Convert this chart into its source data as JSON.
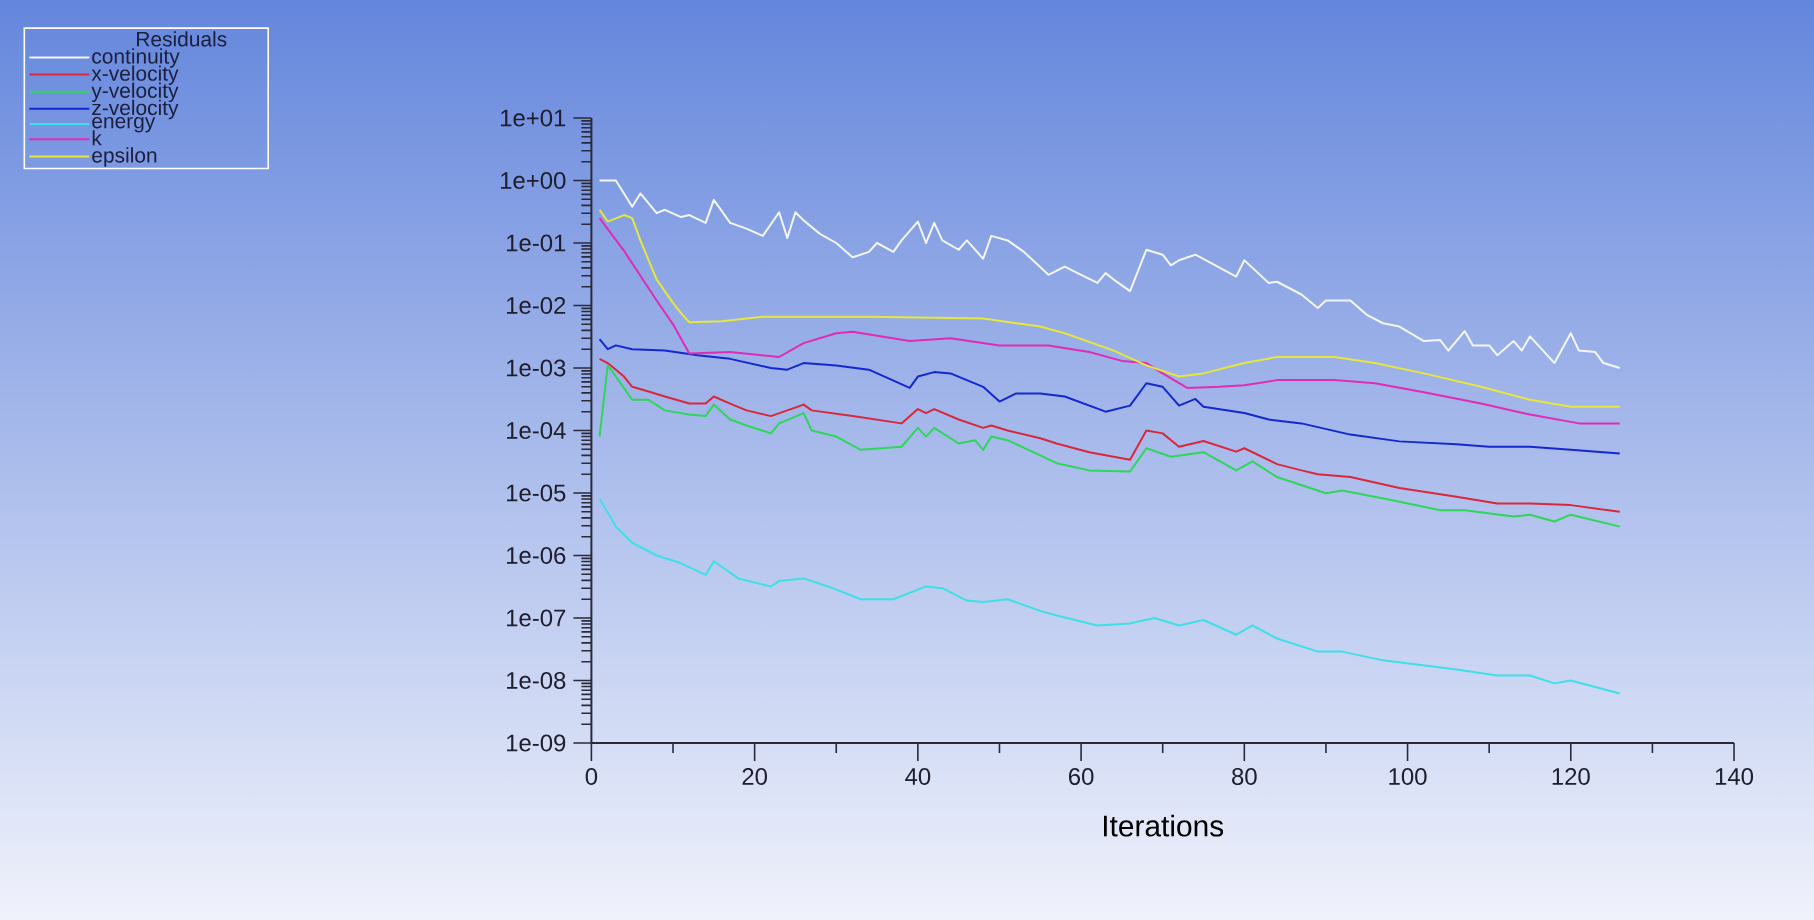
{
  "chart_data": {
    "type": "line",
    "xlabel": "Iterations",
    "legend_title": "Residuals",
    "legend": "top left",
    "log": "y",
    "xlim": [
      0,
      140
    ],
    "xticks": [
      0,
      20,
      40,
      60,
      80,
      100,
      120,
      140
    ],
    "ylim": [
      1e-09,
      10
    ],
    "yticks": [
      {
        "value": 10,
        "label": "1e+01"
      },
      {
        "value": 1,
        "label": "1e+00"
      },
      {
        "value": 0.1,
        "label": "1e-01"
      },
      {
        "value": 0.01,
        "label": "1e-02"
      },
      {
        "value": 0.001,
        "label": "1e-03"
      },
      {
        "value": 0.0001,
        "label": "1e-04"
      },
      {
        "value": 1e-05,
        "label": "1e-05"
      },
      {
        "value": 1e-06,
        "label": "1e-06"
      },
      {
        "value": 1e-07,
        "label": "1e-07"
      },
      {
        "value": 1e-08,
        "label": "1e-08"
      },
      {
        "value": 1e-09,
        "label": "1e-09"
      }
    ],
    "series": [
      {
        "name": "continuity",
        "color": "#f4f6ff",
        "x": [
          1,
          3,
          5,
          6,
          8,
          9,
          11,
          12,
          14,
          15,
          17,
          19,
          21,
          23,
          24,
          25,
          26,
          28,
          30,
          32,
          34,
          35,
          37,
          38,
          40,
          41,
          42,
          43,
          45,
          46,
          48,
          49,
          51,
          53,
          56,
          58,
          60,
          62,
          63,
          64,
          66,
          68,
          70,
          71,
          72,
          74,
          76,
          79,
          80,
          81,
          83,
          84,
          87,
          89,
          90,
          93,
          95,
          97,
          99,
          102,
          104,
          105,
          107,
          108,
          110,
          111,
          113,
          114,
          115,
          118,
          120,
          121,
          123,
          124,
          126
        ],
        "values": [
          1.0,
          1.0,
          0.38,
          0.62,
          0.3,
          0.34,
          0.26,
          0.28,
          0.21,
          0.49,
          0.21,
          0.17,
          0.13,
          0.31,
          0.12,
          0.31,
          0.23,
          0.14,
          0.1,
          0.059,
          0.072,
          0.1,
          0.072,
          0.11,
          0.22,
          0.1,
          0.21,
          0.11,
          0.078,
          0.11,
          0.056,
          0.13,
          0.11,
          0.072,
          0.031,
          0.042,
          0.031,
          0.023,
          0.033,
          0.026,
          0.017,
          0.078,
          0.065,
          0.044,
          0.053,
          0.065,
          0.047,
          0.029,
          0.053,
          0.04,
          0.023,
          0.024,
          0.015,
          0.0091,
          0.012,
          0.012,
          0.0071,
          0.0052,
          0.0046,
          0.0027,
          0.0028,
          0.0019,
          0.0039,
          0.0023,
          0.0023,
          0.0016,
          0.0027,
          0.0019,
          0.0032,
          0.0012,
          0.0036,
          0.0019,
          0.0018,
          0.0012,
          0.001
        ]
      },
      {
        "name": "x-velocity",
        "color": "#d8283c",
        "x": [
          1,
          2,
          4,
          5,
          7,
          9,
          12,
          14,
          15,
          17,
          19,
          22,
          24,
          26,
          27,
          32,
          38,
          40,
          41,
          42,
          45,
          48,
          49,
          51,
          55,
          57,
          61,
          66,
          68,
          70,
          72,
          75,
          79,
          80,
          84,
          87,
          89,
          93,
          99,
          106,
          111,
          115,
          120,
          126
        ],
        "values": [
          0.0014,
          0.0012,
          0.00073,
          0.0005,
          0.00042,
          0.00035,
          0.00027,
          0.00027,
          0.00035,
          0.00027,
          0.00021,
          0.00017,
          0.00021,
          0.00026,
          0.00021,
          0.00017,
          0.00013,
          0.00022,
          0.00019,
          0.00022,
          0.00015,
          0.00011,
          0.00012,
          0.0001,
          7.5e-05,
          6.2e-05,
          4.5e-05,
          3.4e-05,
          0.0001,
          9e-05,
          5.5e-05,
          6.8e-05,
          4.6e-05,
          5.2e-05,
          2.9e-05,
          2.3e-05,
          2e-05,
          1.8e-05,
          1.2e-05,
          8.7e-06,
          6.8e-06,
          6.8e-06,
          6.4e-06,
          5e-06
        ]
      },
      {
        "name": "y-velocity",
        "color": "#2ed65a",
        "x": [
          1,
          2,
          3,
          5,
          7,
          9,
          12,
          14,
          15,
          17,
          19,
          22,
          23,
          26,
          27,
          30,
          33,
          38,
          40,
          41,
          42,
          45,
          47,
          48,
          49,
          51,
          55,
          57,
          61,
          66,
          68,
          71,
          75,
          79,
          81,
          84,
          90,
          92,
          98,
          104,
          107,
          113,
          115,
          118,
          120,
          126
        ],
        "values": [
          8e-05,
          0.0011,
          0.00073,
          0.00031,
          0.00031,
          0.00021,
          0.00018,
          0.00017,
          0.00026,
          0.00015,
          0.00012,
          9e-05,
          0.00013,
          0.00019,
          0.0001,
          8e-05,
          4.9e-05,
          5.5e-05,
          0.00011,
          8e-05,
          0.00011,
          6.2e-05,
          7e-05,
          4.9e-05,
          8e-05,
          7e-05,
          4e-05,
          3e-05,
          2.3e-05,
          2.2e-05,
          5.2e-05,
          3.8e-05,
          4.5e-05,
          2.3e-05,
          3.2e-05,
          1.8e-05,
          9.9e-06,
          1.1e-05,
          7.7e-06,
          5.3e-06,
          5.3e-06,
          4.2e-06,
          4.5e-06,
          3.5e-06,
          4.5e-06,
          2.9e-06
        ]
      },
      {
        "name": "z-velocity",
        "color": "#1428d0",
        "x": [
          1,
          2,
          3,
          5,
          9,
          13,
          17,
          22,
          24,
          26,
          30,
          34,
          39,
          40,
          42,
          44,
          48,
          50,
          52,
          55,
          58,
          63,
          66,
          68,
          70,
          72,
          74,
          75,
          80,
          83,
          87,
          93,
          99,
          106,
          110,
          115,
          120,
          126
        ],
        "values": [
          0.0029,
          0.002,
          0.0023,
          0.002,
          0.0019,
          0.0016,
          0.0014,
          0.001,
          0.00094,
          0.0012,
          0.0011,
          0.00094,
          0.00048,
          0.00073,
          0.00086,
          0.00082,
          0.0005,
          0.00029,
          0.00039,
          0.00039,
          0.00035,
          0.0002,
          0.00025,
          0.00057,
          0.0005,
          0.00025,
          0.00032,
          0.00024,
          0.00019,
          0.00015,
          0.00013,
          8.6e-05,
          6.7e-05,
          6e-05,
          5.5e-05,
          5.5e-05,
          4.9e-05,
          4.3e-05
        ]
      },
      {
        "name": "energy",
        "color": "#3ee0e6",
        "x": [
          1,
          3,
          5,
          8,
          11,
          14,
          15,
          18,
          22,
          23,
          26,
          29,
          33,
          37,
          41,
          43,
          46,
          48,
          51,
          55,
          57,
          62,
          66,
          69,
          72,
          75,
          79,
          81,
          84,
          89,
          92,
          97,
          106,
          111,
          115,
          118,
          120,
          126
        ],
        "values": [
          8.1e-06,
          2.9e-06,
          1.6e-06,
          1e-06,
          7.5e-07,
          4.9e-07,
          8.1e-07,
          4.3e-07,
          3.2e-07,
          3.9e-07,
          4.3e-07,
          3.2e-07,
          2e-07,
          2e-07,
          3.2e-07,
          3e-07,
          1.9e-07,
          1.8e-07,
          2e-07,
          1.3e-07,
          1.1e-07,
          7.6e-08,
          8.2e-08,
          1e-07,
          7.6e-08,
          9.3e-08,
          5.4e-08,
          7.6e-08,
          4.7e-08,
          2.9e-08,
          2.9e-08,
          2.1e-08,
          1.5e-08,
          1.2e-08,
          1.2e-08,
          9e-09,
          1e-08,
          6.2e-09
        ]
      },
      {
        "name": "k",
        "color": "#e02cb4",
        "x": [
          1,
          4,
          6,
          8,
          10,
          12,
          17,
          23,
          26,
          30,
          32,
          39,
          44,
          50,
          56,
          61,
          65,
          68,
          70,
          73,
          77,
          80,
          84,
          91,
          96,
          102,
          109,
          115,
          121,
          126
        ],
        "values": [
          0.25,
          0.075,
          0.03,
          0.012,
          0.005,
          0.0017,
          0.0018,
          0.0015,
          0.0025,
          0.0036,
          0.0038,
          0.0027,
          0.003,
          0.0023,
          0.0023,
          0.0018,
          0.0013,
          0.0012,
          0.00082,
          0.00048,
          0.0005,
          0.00053,
          0.00064,
          0.00064,
          0.00057,
          0.00041,
          0.00027,
          0.00018,
          0.00013,
          0.00013
        ]
      },
      {
        "name": "epsilon",
        "color": "#e6e63c",
        "x": [
          1,
          2,
          4,
          5,
          6,
          8,
          10,
          11,
          12,
          16,
          21,
          34,
          48,
          55,
          58,
          64,
          68,
          72,
          75,
          80,
          84,
          91,
          96,
          102,
          109,
          115,
          120,
          126
        ],
        "values": [
          0.34,
          0.22,
          0.28,
          0.25,
          0.11,
          0.026,
          0.011,
          0.0075,
          0.0054,
          0.0056,
          0.0066,
          0.0066,
          0.0062,
          0.0046,
          0.0036,
          0.0019,
          0.0011,
          0.00073,
          0.00082,
          0.0012,
          0.0015,
          0.0015,
          0.0012,
          0.00082,
          0.0005,
          0.00031,
          0.00024,
          0.00024
        ]
      }
    ]
  }
}
